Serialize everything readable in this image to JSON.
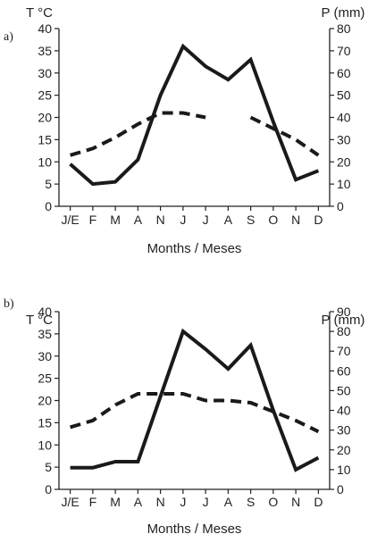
{
  "chart_data": [
    {
      "type": "line",
      "panel_label": "a)",
      "xlabel": "Months / Meses",
      "categories": [
        "J/E",
        "F",
        "M",
        "A",
        "N",
        "J",
        "J",
        "A",
        "S",
        "O",
        "N",
        "D"
      ],
      "left_axis": {
        "label": "T °C",
        "ylim": [
          0,
          40
        ],
        "ticks": [
          0,
          5,
          10,
          15,
          20,
          25,
          30,
          35,
          40
        ]
      },
      "right_axis": {
        "label": "P (mm)",
        "ylim": [
          0,
          80
        ],
        "ticks": [
          0,
          10,
          20,
          30,
          40,
          50,
          60,
          70,
          80
        ]
      },
      "series": [
        {
          "axis": "right",
          "style": "solid",
          "values": [
            19,
            10,
            11,
            21,
            50,
            72,
            63,
            57,
            66,
            38,
            12,
            16
          ]
        },
        {
          "axis": "left",
          "style": "dashed",
          "values": [
            11.5,
            13,
            15.5,
            18.5,
            21,
            21,
            20,
            null,
            20,
            17.5,
            15,
            11.5
          ]
        }
      ]
    },
    {
      "type": "line",
      "panel_label": "b)",
      "xlabel": "Months / Meses",
      "categories": [
        "J/E",
        "F",
        "M",
        "A",
        "N",
        "J",
        "J",
        "A",
        "S",
        "O",
        "N",
        "D"
      ],
      "left_axis": {
        "label": "T °C",
        "ylim": [
          0,
          40
        ],
        "ticks": [
          0,
          5,
          10,
          15,
          20,
          25,
          30,
          35,
          40
        ]
      },
      "right_axis": {
        "label": "P (mm)",
        "ylim": [
          0,
          90
        ],
        "ticks": [
          0,
          10,
          20,
          30,
          40,
          50,
          60,
          70,
          80,
          90
        ]
      },
      "series": [
        {
          "axis": "right",
          "style": "solid",
          "values": [
            11,
            11,
            14,
            14,
            47,
            80,
            71,
            61,
            73,
            40,
            10,
            16
          ]
        },
        {
          "axis": "left",
          "style": "dashed",
          "values": [
            14,
            15.5,
            19,
            21.5,
            21.5,
            21.5,
            20,
            20,
            19.5,
            17.5,
            15.5,
            13
          ]
        }
      ]
    }
  ]
}
